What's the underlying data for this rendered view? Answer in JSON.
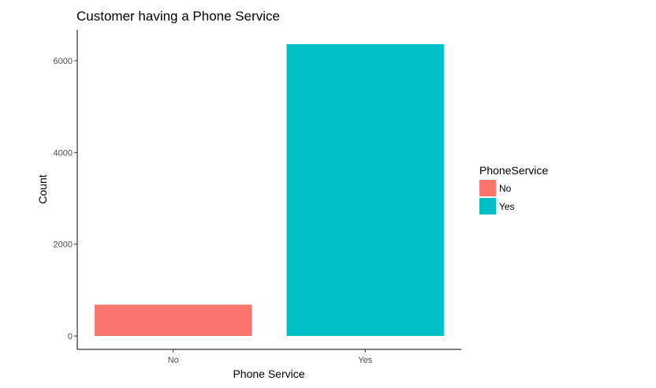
{
  "chart_data": {
    "type": "bar",
    "title": "Customer having a Phone Service",
    "xlabel": "Phone Service",
    "ylabel": "Count",
    "categories": [
      "No",
      "Yes"
    ],
    "values": [
      682,
      6361
    ],
    "colors": [
      "#F8766D",
      "#00BFC4"
    ],
    "ylim": [
      0,
      6600
    ],
    "yticks": [
      0,
      2000,
      4000,
      6000
    ],
    "ytick_labels": [
      "0",
      "2000",
      "4000",
      "6000"
    ],
    "grid": false,
    "legend": {
      "title": "PhoneService",
      "position": "right",
      "entries": [
        "No",
        "Yes"
      ]
    }
  }
}
